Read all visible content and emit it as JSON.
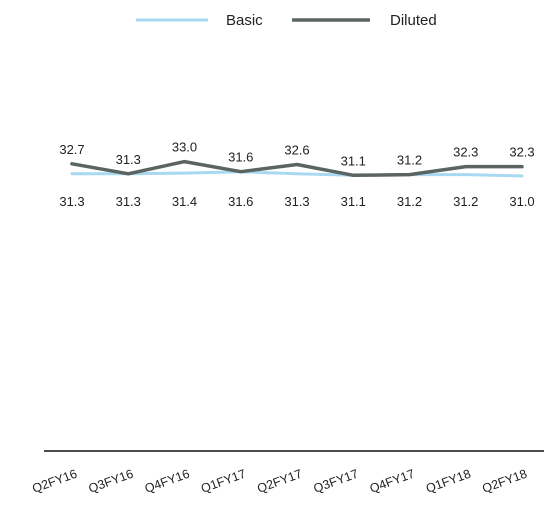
{
  "chart_data": {
    "type": "line",
    "title": "",
    "xlabel": "",
    "ylabel": "",
    "categories": [
      "Q2FY16",
      "Q3FY16",
      "Q4FY16",
      "Q1FY17",
      "Q2FY17",
      "Q3FY17",
      "Q4FY17",
      "Q1FY18",
      "Q2FY18"
    ],
    "series": [
      {
        "name": "Basic",
        "color": "#a9d8f2",
        "values": [
          31.3,
          31.3,
          31.4,
          31.6,
          31.3,
          31.1,
          31.2,
          31.2,
          31.0
        ]
      },
      {
        "name": "Diluted",
        "color": "#5a6461",
        "values": [
          32.7,
          31.3,
          33.0,
          31.6,
          32.6,
          31.1,
          31.2,
          32.3,
          32.3
        ]
      }
    ],
    "legend_position": "top",
    "grid": false,
    "data_labels": true
  }
}
